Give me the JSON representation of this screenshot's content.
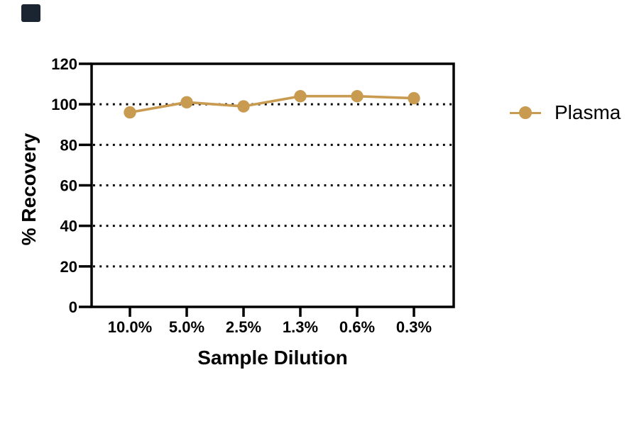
{
  "page": {
    "background": "#ffffff"
  },
  "corner_mark": {
    "color": "#1b2431"
  },
  "chart_data": {
    "type": "line",
    "title": "",
    "xlabel": "Sample Dilution",
    "ylabel": "% Recovery",
    "categories": [
      "10.0%",
      "5.0%",
      "2.5%",
      "1.3%",
      "0.6%",
      "0.3%"
    ],
    "series": [
      {
        "name": "Plasma",
        "color": "#C89B50",
        "values": [
          96,
          101,
          99,
          104,
          104,
          103
        ]
      }
    ],
    "ylim": [
      0,
      120
    ],
    "y_ticks": [
      0,
      20,
      40,
      60,
      80,
      100,
      120
    ],
    "gridlines": {
      "values": [
        20,
        40,
        60,
        80,
        100
      ],
      "style": "dotted",
      "color": "#000000"
    },
    "axis_color": "#000000",
    "legend_position": "right"
  }
}
